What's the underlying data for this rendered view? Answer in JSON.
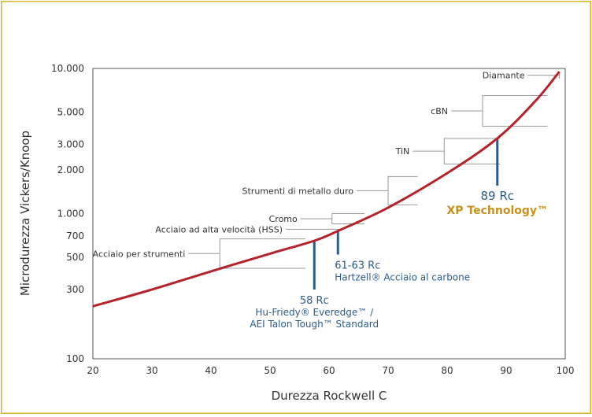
{
  "colors": {
    "frame": "#d8b52a",
    "curve": "#b5232a",
    "blue": "#2a5c8a",
    "gold": "#c9901a",
    "text": "#333333",
    "axis": "#555555",
    "bracket": "#9a9a9a"
  },
  "chart_data": {
    "type": "line",
    "title": "",
    "xlabel": "Durezza Rockwell C",
    "ylabel": "Microdurezza Vickers/Knoop",
    "xlim": [
      20,
      100
    ],
    "ylim": [
      100,
      10000
    ],
    "yscale": "log",
    "grid": false,
    "x_ticks": [
      {
        "value": 20,
        "label": "20"
      },
      {
        "value": 30,
        "label": "30"
      },
      {
        "value": 40,
        "label": "40"
      },
      {
        "value": 50,
        "label": "50"
      },
      {
        "value": 60,
        "label": "60"
      },
      {
        "value": 70,
        "label": "70"
      },
      {
        "value": 80,
        "label": "80"
      },
      {
        "value": 90,
        "label": "90"
      },
      {
        "value": 100,
        "label": "100"
      }
    ],
    "y_ticks": [
      {
        "value": 10000,
        "label": "10.000"
      },
      {
        "value": 5000,
        "label": "5.000"
      },
      {
        "value": 3000,
        "label": "3.000"
      },
      {
        "value": 2000,
        "label": "2.000"
      },
      {
        "value": 1000,
        "label": "1.000"
      },
      {
        "value": 700,
        "label": "700"
      },
      {
        "value": 500,
        "label": "500"
      },
      {
        "value": 300,
        "label": "300"
      },
      {
        "value": 100,
        "label": "100"
      }
    ],
    "series": [
      {
        "name": "",
        "x": [
          20,
          30,
          40,
          50,
          57.5,
          61.5,
          70,
          80,
          88.5,
          95,
          99
        ],
        "y": [
          230,
          300,
          400,
          530,
          650,
          760,
          1100,
          1900,
          3300,
          6000,
          9500
        ]
      }
    ],
    "ranges": [
      {
        "label": "Diamante",
        "x_from": 99,
        "x_to": 99,
        "y_from": 8500,
        "y_to": 9500
      },
      {
        "label": "cBN",
        "x_from": 86,
        "x_to": 97,
        "y_from": 4000,
        "y_to": 6500
      },
      {
        "label": "TiN",
        "x_from": 79.5,
        "x_to": 89,
        "y_from": 2200,
        "y_to": 3300
      },
      {
        "label": "Strumenti di metallo duro",
        "x_from": 70,
        "x_to": 75,
        "y_from": 1150,
        "y_to": 1800
      },
      {
        "label": "Cromo",
        "x_from": 60.5,
        "x_to": 66,
        "y_from": 850,
        "y_to": 1000
      },
      {
        "label": "Acciaio ad alta velocità (HSS)",
        "x_from": 62,
        "x_to": 62,
        "y_from": 780,
        "y_to": 780
      },
      {
        "label": "Acciaio per strumenti",
        "x_from": 41.5,
        "x_to": 56,
        "y_from": 420,
        "y_to": 670
      }
    ],
    "markers": [
      {
        "x": 57.5,
        "value_label": "58 Rc",
        "name_lines": [
          "Hu-Friedy® Everedge™ /",
          "AEI Talon Tough™ Standard"
        ],
        "highlight": false
      },
      {
        "x": 61.5,
        "value_label": "61-63 Rc",
        "name_lines": [
          "Hartzell® Acciaio al carbone"
        ],
        "highlight": false
      },
      {
        "x": 88.5,
        "value_label": "89 Rc",
        "name_lines": [
          "XP Technology™"
        ],
        "highlight": true
      }
    ]
  }
}
